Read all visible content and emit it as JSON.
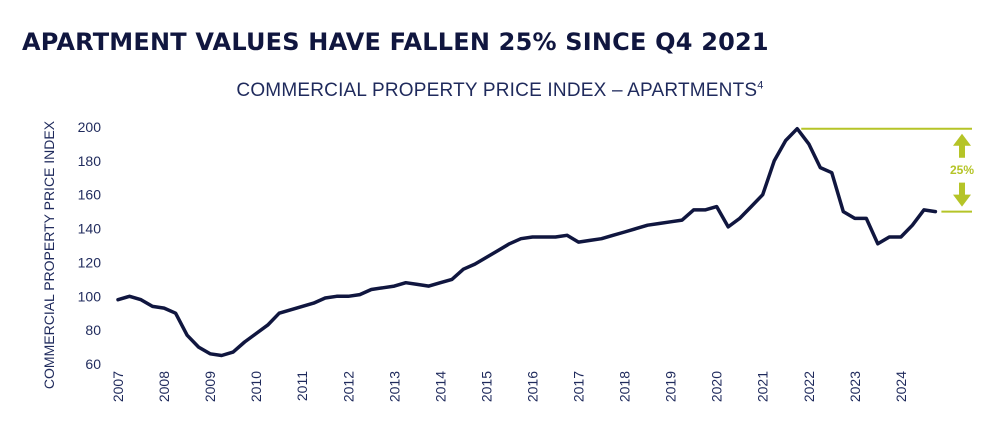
{
  "headline": "APARTMENT VALUES HAVE FALLEN 25% SINCE Q4 2021",
  "chart_data": {
    "type": "line",
    "title": "COMMERCIAL PROPERTY PRICE INDEX – APARTMENTS",
    "title_superscript": "4",
    "xlabel": "",
    "ylabel": "COMMERCIAL PROPERTY PRICE INDEX",
    "ylim": [
      60,
      200
    ],
    "yticks": [
      60,
      80,
      100,
      120,
      140,
      160,
      180,
      200
    ],
    "xlim": [
      2007,
      2024.85
    ],
    "xticks": [
      "2007",
      "2008",
      "2009",
      "2010",
      "2011",
      "2012",
      "2013",
      "2014",
      "2015",
      "2016",
      "2017",
      "2018",
      "2019",
      "2020",
      "2021",
      "2022",
      "2023",
      "2024"
    ],
    "grid": false,
    "series": [
      {
        "color": "#10163f",
        "x": [
          2007.0,
          2007.25,
          2007.5,
          2007.75,
          2008.0,
          2008.25,
          2008.5,
          2008.75,
          2009.0,
          2009.25,
          2009.5,
          2009.75,
          2010.0,
          2010.25,
          2010.5,
          2010.75,
          2011.0,
          2011.25,
          2011.5,
          2011.75,
          2012.0,
          2012.25,
          2012.5,
          2012.75,
          2013.0,
          2013.25,
          2013.5,
          2013.75,
          2014.0,
          2014.25,
          2014.5,
          2014.75,
          2015.0,
          2015.25,
          2015.5,
          2015.75,
          2016.0,
          2016.25,
          2016.5,
          2016.75,
          2017.0,
          2017.25,
          2017.5,
          2017.75,
          2018.0,
          2018.25,
          2018.5,
          2018.75,
          2019.0,
          2019.25,
          2019.5,
          2019.75,
          2020.0,
          2020.25,
          2020.5,
          2020.75,
          2021.0,
          2021.25,
          2021.5,
          2021.75,
          2022.0,
          2022.25,
          2022.5,
          2022.75,
          2023.0,
          2023.25,
          2023.5,
          2023.75,
          2024.0,
          2024.25,
          2024.5,
          2024.75
        ],
        "values": [
          98,
          100,
          98,
          94,
          93,
          90,
          77,
          70,
          66,
          65,
          67,
          73,
          78,
          83,
          90,
          92,
          94,
          96,
          99,
          100,
          100,
          101,
          104,
          105,
          106,
          108,
          107,
          106,
          108,
          110,
          116,
          119,
          123,
          127,
          131,
          134,
          135,
          135,
          135,
          136,
          132,
          133,
          134,
          136,
          138,
          140,
          142,
          143,
          144,
          145,
          151,
          151,
          153,
          141,
          146,
          153,
          160,
          180,
          192,
          199,
          190,
          176,
          173,
          150,
          146,
          146,
          131,
          135,
          135,
          142,
          151,
          150
        ]
      }
    ],
    "annotation": {
      "label": "25%",
      "from": 199,
      "to": 150,
      "color": "#b5c427"
    }
  }
}
